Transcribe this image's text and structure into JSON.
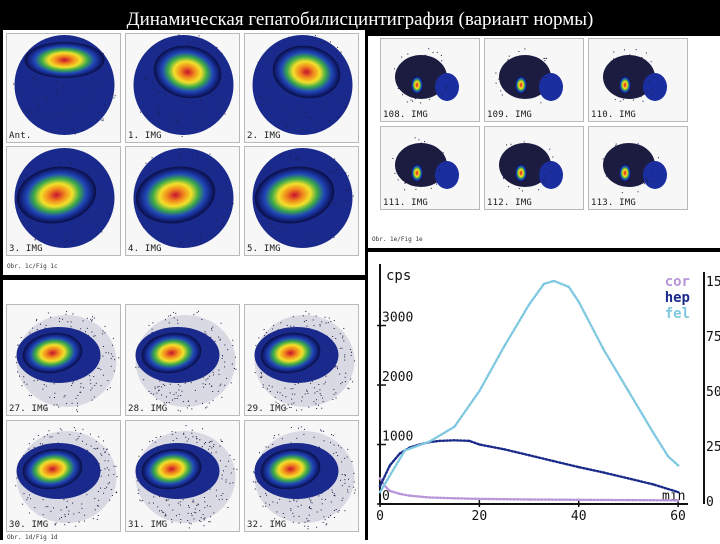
{
  "slide_title": "Динамическая гепатобилисцинтиграфия (вариант нормы)",
  "top_left_panel": {
    "caption": "Obr. 1c/Fig 1c",
    "tiles": [
      {
        "label": "Ant."
      },
      {
        "label": "1. IMG"
      },
      {
        "label": "2. IMG"
      },
      {
        "label": "3. IMG"
      },
      {
        "label": "4. IMG"
      },
      {
        "label": "5. IMG"
      }
    ]
  },
  "top_right_panel": {
    "caption": "Obr. 1e/Fig 1e",
    "tiles": [
      {
        "label": "108. IMG"
      },
      {
        "label": "109. IMG"
      },
      {
        "label": "110. IMG"
      },
      {
        "label": "111. IMG"
      },
      {
        "label": "112. IMG"
      },
      {
        "label": "113. IMG"
      }
    ]
  },
  "bottom_left_panel": {
    "caption": "Obr. 1d/Fig 1d",
    "tiles": [
      {
        "label": "27. IMG"
      },
      {
        "label": "28. IMG"
      },
      {
        "label": "29. IMG"
      },
      {
        "label": "30. IMG"
      },
      {
        "label": "31. IMG"
      },
      {
        "label": "32. IMG"
      }
    ]
  },
  "chart_data": {
    "type": "line",
    "ylabel": "cps",
    "xlabel": "min",
    "xlim": [
      0,
      62
    ],
    "ylim": [
      0,
      3900
    ],
    "x_ticks": [
      0,
      20,
      40,
      60
    ],
    "y_ticks": [
      0,
      1000,
      2000,
      3000
    ],
    "legend_placement": "top-right",
    "series": [
      {
        "name": "cor",
        "color": "#b894d8",
        "x": [
          0,
          1,
          2,
          4,
          6,
          10,
          15,
          20,
          30,
          40,
          50,
          60
        ],
        "values": [
          430,
          300,
          220,
          170,
          140,
          110,
          95,
          85,
          75,
          70,
          65,
          60
        ]
      },
      {
        "name": "hep",
        "color": "#1a2a8a",
        "x": [
          0,
          2,
          4,
          6,
          8,
          10,
          12,
          15,
          18,
          20,
          25,
          30,
          35,
          40,
          45,
          50,
          55,
          60
        ],
        "values": [
          300,
          650,
          850,
          950,
          1000,
          1040,
          1060,
          1070,
          1060,
          1000,
          920,
          820,
          720,
          620,
          530,
          430,
          330,
          200
        ]
      },
      {
        "name": "fel",
        "color": "#7fc8e0",
        "x": [
          0,
          5,
          10,
          15,
          20,
          25,
          30,
          33,
          35,
          38,
          40,
          45,
          50,
          55,
          58,
          60
        ],
        "values": [
          200,
          900,
          1050,
          1300,
          1900,
          2650,
          3350,
          3700,
          3750,
          3650,
          3400,
          2600,
          1900,
          1200,
          800,
          650
        ]
      }
    ]
  },
  "right_edge_axis_labels": [
    "15",
    "75",
    "50",
    "25",
    "0"
  ],
  "colors": {
    "background": "#000000",
    "title_text": "#ffffff",
    "panel_background": "#ffffff",
    "chart_axis": "#111111"
  }
}
